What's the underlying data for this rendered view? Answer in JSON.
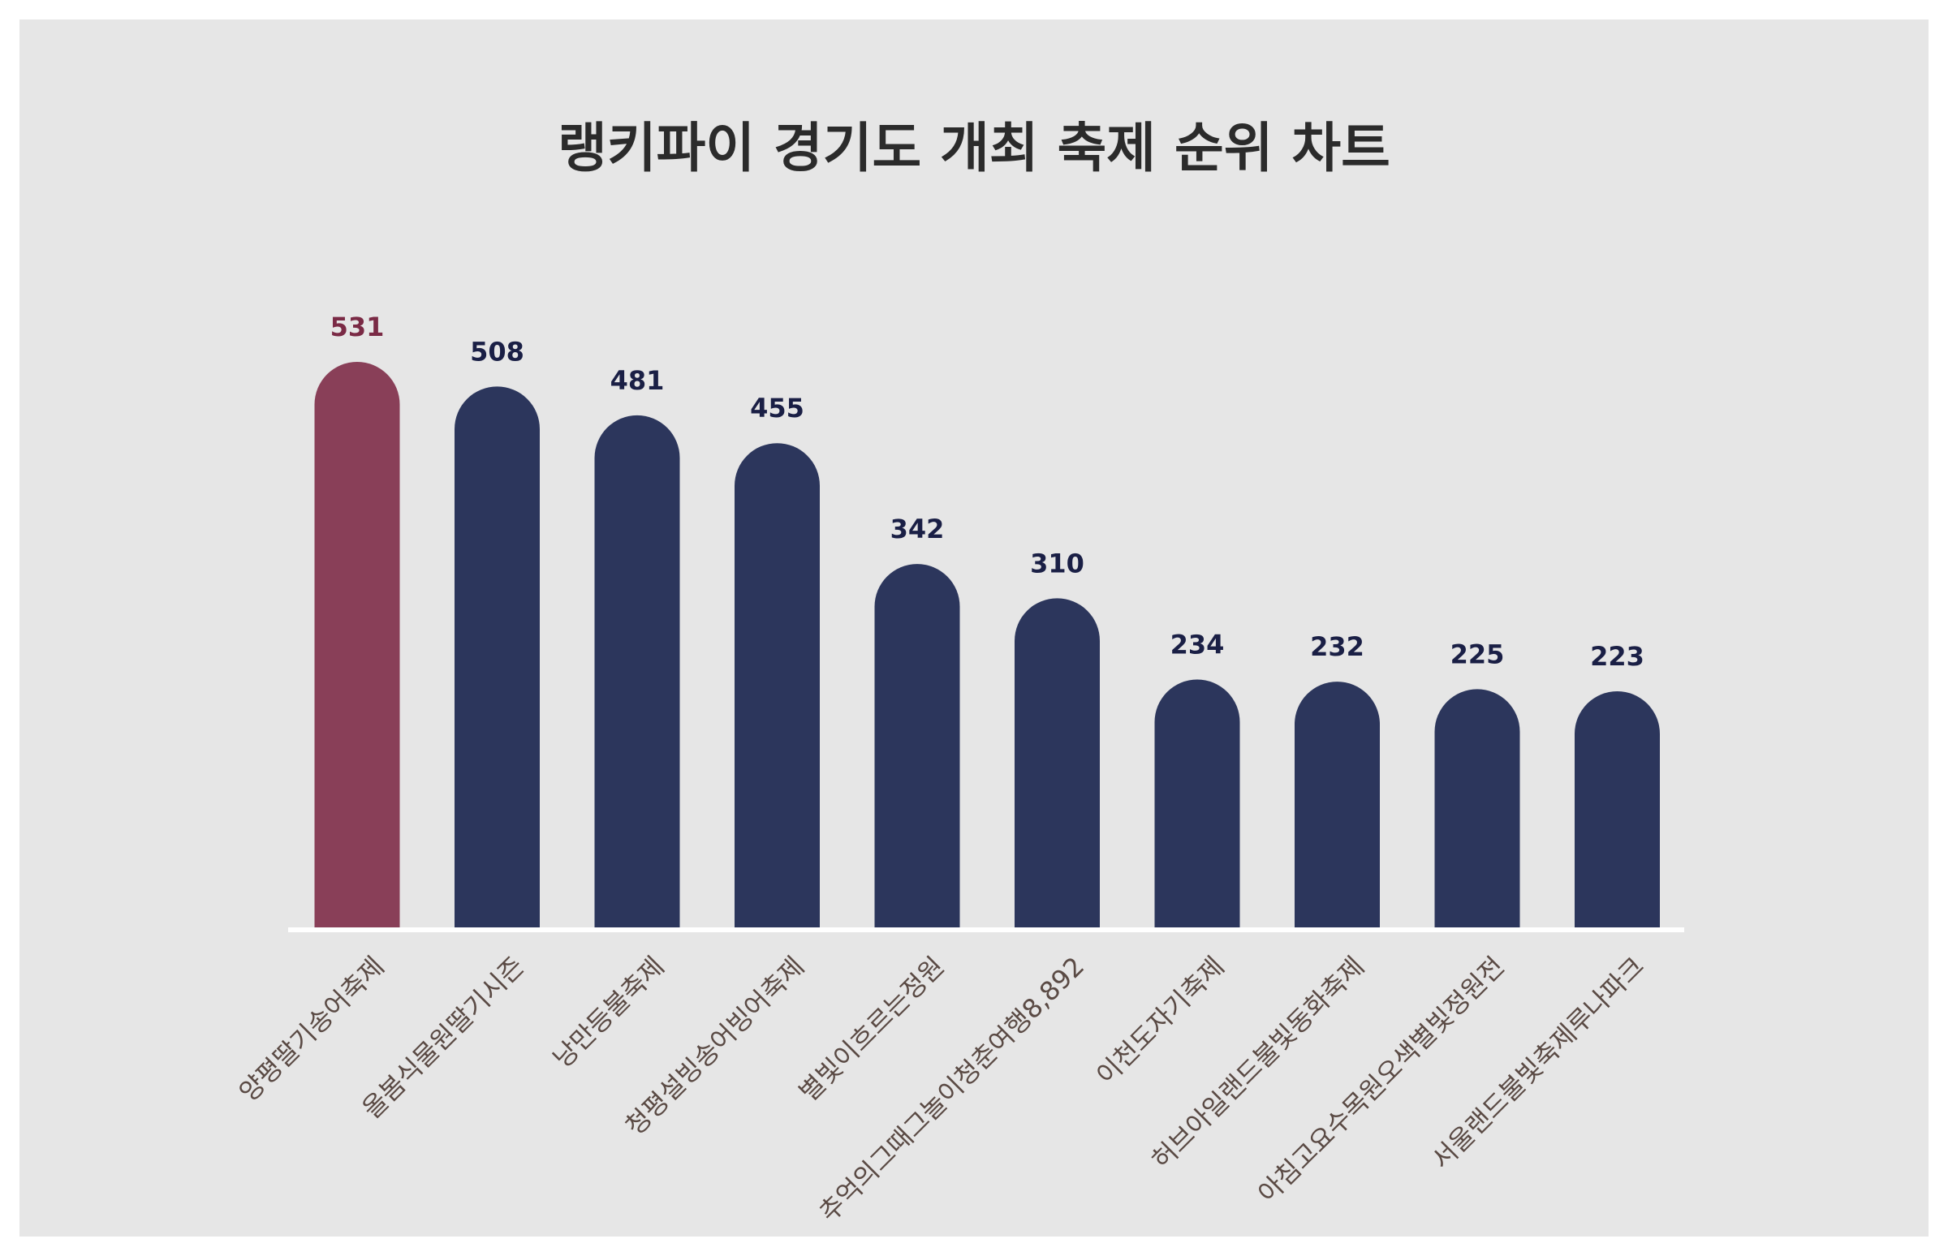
{
  "chart_data": {
    "type": "bar",
    "title": "랭키파이 경기도 개최 축제 순위 차트",
    "xlabel": "",
    "ylabel": "",
    "categories": [
      "양평딸기송어축제",
      "올봄식물원딸기시즌",
      "낭만등불축제",
      "청평설빙송어빙어축제",
      "별빛이흐르는정원",
      "추억의그때그놀이청춘여행8,892",
      "이천도자기축제",
      "허브아일랜드불빛동화축제",
      "아침고요수목원오색별빛정원전",
      "서울랜드불빛축제루나파크"
    ],
    "values": [
      531,
      508,
      481,
      455,
      342,
      310,
      234,
      232,
      225,
      223
    ],
    "value_labels": [
      "531",
      "508",
      "481",
      "455",
      "342",
      "310",
      "234",
      "232",
      "225",
      "223"
    ],
    "highlight_index": 0,
    "ylim": [
      0,
      531
    ],
    "grid": false,
    "legend": "none"
  },
  "colors": {
    "background": "#e6e6e6",
    "highlight_bar": "#893f58",
    "bar": "#2c365c",
    "highlight_value": "#7a2a45",
    "value": "#1a1f45",
    "tick_label": "#5a4a44",
    "baseline": "#ffffff",
    "title": "#2b2b2b"
  }
}
